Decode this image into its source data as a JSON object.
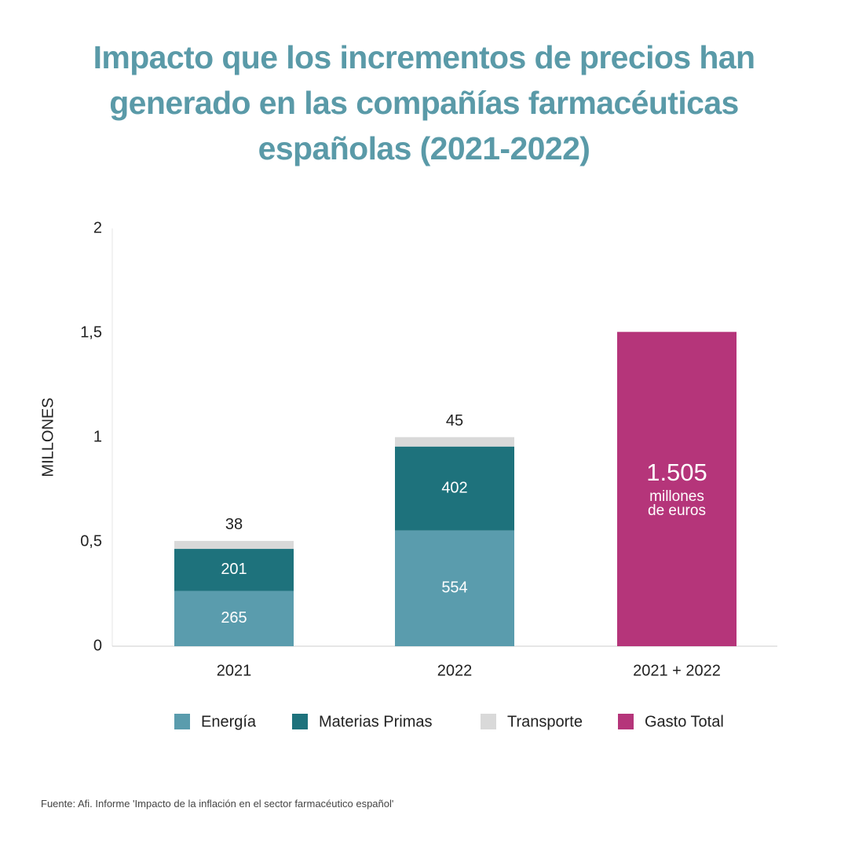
{
  "chart_data": {
    "type": "stacked_bar",
    "title": "Impacto que los incrementos de precios han generado en las compañías farmacéuticas españolas (2021-2022)",
    "y_label": "MILLONES",
    "categories": [
      "2021",
      "2022",
      "2021 + 2022"
    ],
    "series": [
      {
        "name": "Energía",
        "color": "#5a9cad",
        "values": [
          0.265,
          0.554,
          null
        ],
        "value_labels": [
          "265",
          "554",
          null
        ]
      },
      {
        "name": "Materias Primas",
        "color": "#1e727c",
        "values": [
          0.201,
          0.402,
          null
        ],
        "value_labels": [
          "201",
          "402",
          null
        ]
      },
      {
        "name": "Transporte",
        "color": "#d9d9d9",
        "values": [
          0.038,
          0.045,
          null
        ],
        "value_labels": [
          "38",
          "45",
          null
        ]
      },
      {
        "name": "Gasto Total",
        "color": "#b5357a",
        "values": [
          null,
          null,
          1.505
        ],
        "value_labels": [
          null,
          null,
          "1.505"
        ]
      }
    ],
    "annotation_lines": [
      "millones",
      "de euros"
    ],
    "ylim": [
      0,
      2
    ],
    "yticks": [
      0,
      {
        "value": 0.5,
        "label": "0,5"
      },
      1,
      {
        "value": 1.5,
        "label": "1,5"
      },
      2
    ],
    "source": "Fuente: Afi. Informe 'Impacto de la inflación en el sector farmacéutico español'"
  }
}
